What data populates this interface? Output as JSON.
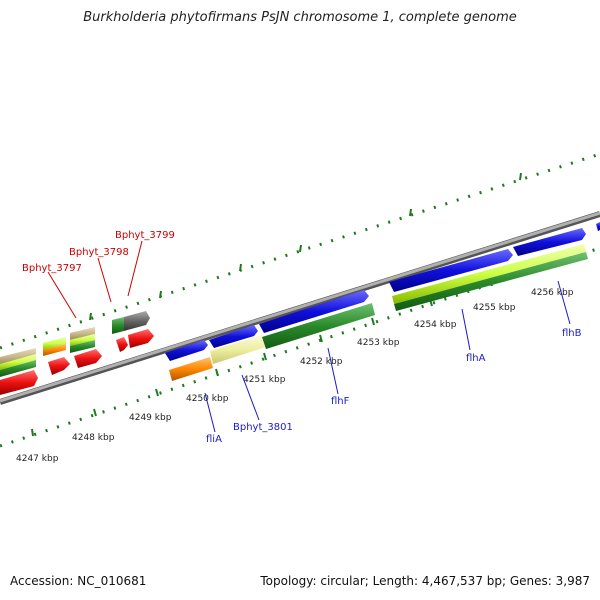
{
  "title": "Burkholderia phytofirmans PsJN chromosome 1, complete genome",
  "footer": {
    "accession": "Accession: NC_010681",
    "stats": "Topology: circular; Length: 4,467,537 bp; Genes: 3,987"
  },
  "kbp_labels": [
    "4247 kbp",
    "4248 kbp",
    "4249 kbp",
    "4250 kbp",
    "4251 kbp",
    "4252 kbp",
    "4253 kbp",
    "4254 kbp",
    "4255 kbp",
    "4256 kbp"
  ],
  "gene_labels_top": [
    "Bphyt_3797",
    "Bphyt_3798",
    "Bphyt_3799"
  ],
  "gene_labels_bottom": [
    "fliA",
    "Bphyt_3801",
    "flhF",
    "flhA",
    "flhB"
  ],
  "colors": {
    "backbone": "#8c8c8c",
    "tick": "#1e7a1e",
    "top_label": "#cc0000",
    "bottom_label": "#1a1acc",
    "cds_blue": "#1010dd",
    "cds_green": "#2a8a2a",
    "cds_red": "#ee1111",
    "cds_orange": "#ff8800",
    "cds_yellow": "#eeeea0",
    "cds_lime": "#ccff44",
    "cds_gray": "#666666",
    "cds_tan": "#c8b88a"
  }
}
